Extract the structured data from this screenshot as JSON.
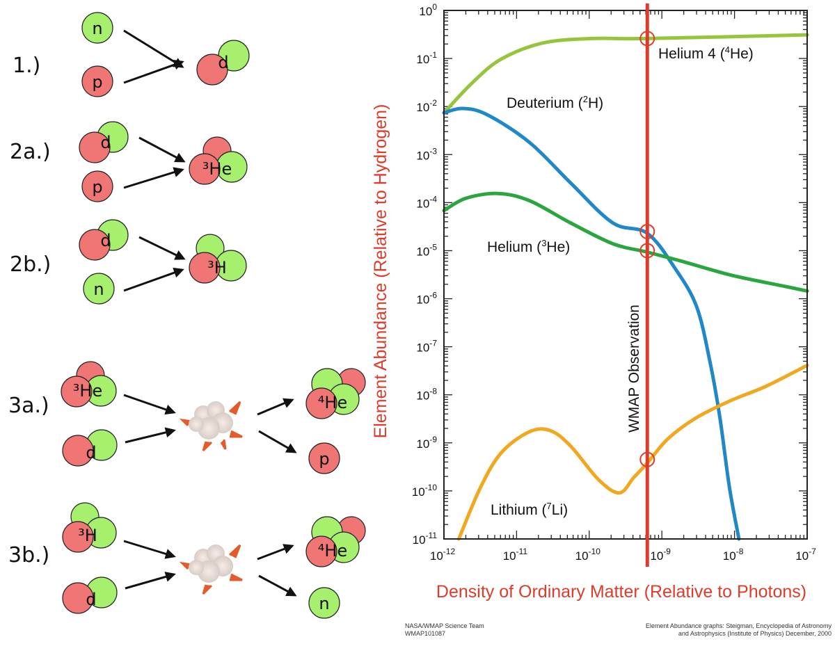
{
  "diagram": {
    "reactions": [
      {
        "label": "1.)",
        "inputs": [
          "n",
          "p"
        ],
        "outputs": [
          "d"
        ]
      },
      {
        "label": "2a.)",
        "inputs": [
          "d",
          "p"
        ],
        "outputs": [
          "³He"
        ]
      },
      {
        "label": "2b.)",
        "inputs": [
          "d",
          "n"
        ],
        "outputs": [
          "³H"
        ]
      },
      {
        "label": "3a.)",
        "inputs": [
          "³He",
          "d"
        ],
        "outputs": [
          "⁴He",
          "p"
        ]
      },
      {
        "label": "3b.)",
        "inputs": [
          "³H",
          "d"
        ],
        "outputs": [
          "⁴He",
          "n"
        ]
      }
    ],
    "colors": {
      "proton": "#f07575",
      "neutron": "#a6f06e"
    }
  },
  "chart_data": {
    "type": "line",
    "xlabel": "Density of Ordinary Matter (Relative to Photons)",
    "ylabel": "Element Abundance (Relative to Hydrogen)",
    "x_scale": "log",
    "y_scale": "log",
    "xlim": [
      1e-12,
      1e-07
    ],
    "ylim": [
      1e-11,
      1
    ],
    "x_ticks": [
      "10^-12",
      "10^-11",
      "10^-10",
      "10^-9",
      "10^-8",
      "10^-7"
    ],
    "y_ticks": [
      "10^0",
      "10^-1",
      "10^-2",
      "10^-3",
      "10^-4",
      "10^-5",
      "10^-6",
      "10^-7",
      "10^-8",
      "10^-9",
      "10^-10",
      "10^-11"
    ],
    "series": [
      {
        "name": "Helium 4 (⁴He)",
        "color": "#95c43d",
        "x": [
          1e-12,
          2.5e-12,
          6.2e-12,
          2.3e-11,
          1.07e-10,
          6.3e-10,
          1e-07
        ],
        "y": [
          0.0074,
          0.032,
          0.098,
          0.21,
          0.26,
          0.26,
          0.31
        ]
      },
      {
        "name": "Deuterium (²H)",
        "color": "#1f88c8",
        "x": [
          1e-12,
          1.8e-12,
          3.9e-12,
          1.5e-11,
          5.5e-11,
          2.1e-10,
          6.3e-10,
          1.5e-09,
          3e-09,
          4.6e-09,
          6.3e-09,
          8.5e-09,
          1.15e-08
        ],
        "y": [
          0.0074,
          0.0091,
          0.0068,
          0.0018,
          0.00026,
          3.8e-05,
          2.3e-05,
          4.4e-06,
          6.9e-07,
          4.8e-08,
          3.3e-09,
          1.2e-10,
          1e-11
        ]
      },
      {
        "name": "Helium (³He)",
        "color": "#2aa63e",
        "x": [
          1e-12,
          2e-12,
          5.5e-12,
          1.5e-11,
          5.5e-11,
          2.1e-10,
          6.3e-10,
          1.9e-09,
          8.9e-09,
          4.2e-08,
          1e-07
        ],
        "y": [
          6.8e-05,
          0.000123,
          0.000155,
          0.00011,
          3.8e-05,
          1.4e-05,
          9.3e-06,
          6e-06,
          3.1e-06,
          1.9e-06,
          1.45e-06
        ]
      },
      {
        "name": "Lithium (⁷Li)",
        "color": "#f0a820",
        "x": [
          1.6e-12,
          3.2e-12,
          6.2e-12,
          1.5e-11,
          2.9e-11,
          5.5e-11,
          1.35e-10,
          2.6e-10,
          4.1e-10,
          6.3e-10,
          1.2e-09,
          2.95e-09,
          8.9e-09,
          2.7e-08,
          1e-07
        ],
        "y": [
          1e-11,
          1.2e-10,
          6.3e-10,
          1.7e-09,
          1.8e-09,
          8.7e-10,
          1.7e-10,
          9.1e-11,
          1.9e-10,
          3.8e-10,
          1.2e-09,
          3.3e-09,
          7.6e-09,
          1.5e-08,
          4.1e-08
        ]
      }
    ],
    "labels": {
      "he4": [
        "Helium 4 (",
        "4",
        "He)"
      ],
      "d": [
        "Deuterium (",
        "2",
        "H)"
      ],
      "he3": [
        "Helium (",
        "3",
        "He)"
      ],
      "li": [
        "Lithium (",
        "7",
        "Li)"
      ]
    },
    "observation": {
      "label": "WMAP Observation",
      "x": 6.3e-10,
      "color": "#e03a2a",
      "circles_y": [
        0.26,
        2.5e-05,
        1e-05,
        4.5e-10
      ]
    },
    "grid": false,
    "legend": "none"
  },
  "credits": {
    "left": [
      "NASA/WMAP Science Team",
      "WMAP101087"
    ],
    "right": [
      "Element Abundance graphs: Steigman, Encyclopedia of Astronomy",
      "and Astrophysics (Institute of Physics) December, 2000"
    ]
  }
}
